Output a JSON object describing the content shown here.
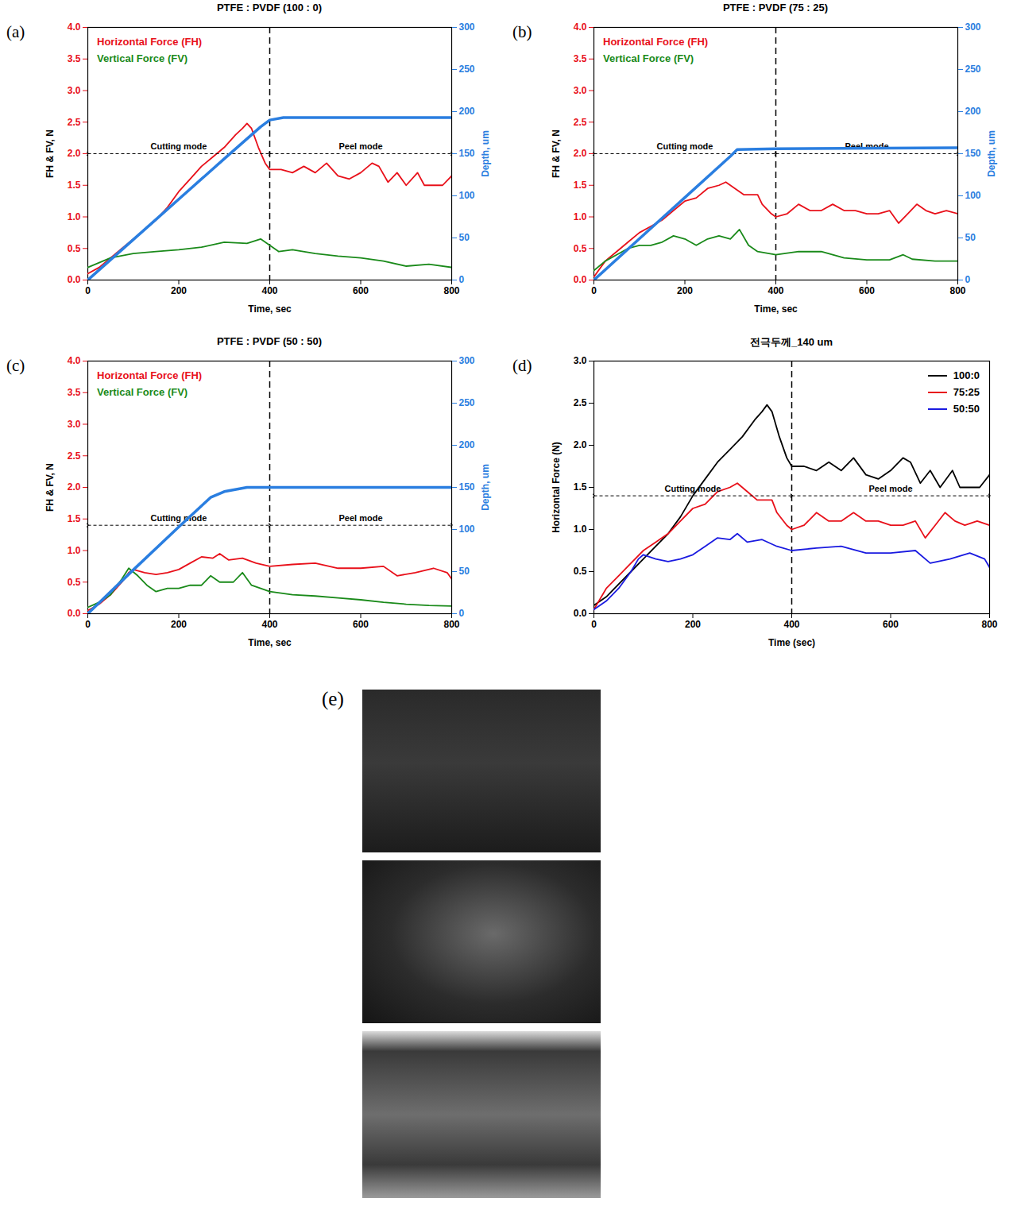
{
  "chart_data": [
    {
      "type": "line",
      "label": "(a)",
      "title": "PTFE : PVDF (100 : 0)",
      "x_label": "Time, sec",
      "y_label": "FH & FV, N",
      "y2_label": "Depth, um",
      "xlim": [
        0,
        800
      ],
      "xticks": [
        0,
        200,
        400,
        600,
        800
      ],
      "ylim": [
        0,
        4
      ],
      "yticks": [
        {
          "value": 0,
          "label": "0.0"
        },
        {
          "value": 0.5,
          "label": "0.5"
        },
        {
          "value": 1,
          "label": "1.0"
        },
        {
          "value": 1.5,
          "label": "1.5"
        },
        {
          "value": 2,
          "label": "2.0"
        },
        {
          "value": 2.5,
          "label": "2.5"
        },
        {
          "value": 3,
          "label": "3.0"
        },
        {
          "value": 3.5,
          "label": "3.5"
        },
        {
          "value": 4,
          "label": "4.0"
        }
      ],
      "y2lim": [
        0,
        300
      ],
      "y2ticks": [
        0,
        50,
        100,
        150,
        200,
        250,
        300
      ],
      "legend": "upper left",
      "annotations": [
        {
          "x": 400,
          "line_style": "dashed"
        },
        {
          "text": "Cutting mode",
          "x": [
            0,
            400
          ],
          "y": 2.0
        },
        {
          "text": "Peel mode",
          "x": [
            400,
            800
          ],
          "y": 2.0
        }
      ],
      "series": [
        {
          "name": "Horizontal Force (FH)",
          "color": "#e8101a",
          "x": [
            0,
            25,
            50,
            75,
            100,
            125,
            150,
            175,
            200,
            225,
            250,
            275,
            300,
            325,
            340,
            350,
            360,
            375,
            390,
            400,
            425,
            450,
            475,
            500,
            525,
            550,
            575,
            600,
            625,
            640,
            660,
            680,
            700,
            725,
            740,
            760,
            780,
            800
          ],
          "values": [
            0.1,
            0.2,
            0.35,
            0.5,
            0.65,
            0.8,
            0.95,
            1.15,
            1.4,
            1.6,
            1.8,
            1.95,
            2.1,
            2.3,
            2.4,
            2.48,
            2.4,
            2.1,
            1.85,
            1.75,
            1.75,
            1.7,
            1.8,
            1.7,
            1.85,
            1.65,
            1.6,
            1.7,
            1.85,
            1.8,
            1.55,
            1.7,
            1.5,
            1.7,
            1.5,
            1.5,
            1.5,
            1.65
          ]
        },
        {
          "name": "Vertical Force (FV)",
          "color": "#1a8a1a",
          "x": [
            0,
            50,
            100,
            150,
            200,
            250,
            300,
            350,
            380,
            400,
            420,
            450,
            500,
            550,
            600,
            650,
            700,
            750,
            800
          ],
          "values": [
            0.2,
            0.35,
            0.42,
            0.45,
            0.48,
            0.52,
            0.6,
            0.58,
            0.65,
            0.55,
            0.45,
            0.48,
            0.42,
            0.38,
            0.35,
            0.3,
            0.22,
            0.25,
            0.2
          ]
        },
        {
          "name": "Depth, um",
          "color": "#2a7ee0",
          "axis": "y2",
          "x": [
            0,
            100,
            200,
            300,
            380,
            400,
            430,
            800
          ],
          "values": [
            0,
            48,
            96,
            144,
            182,
            190,
            193,
            193
          ]
        }
      ]
    },
    {
      "type": "line",
      "label": "(b)",
      "title": "PTFE : PVDF (75 : 25)",
      "x_label": "Time, sec",
      "y_label": "FH & FV, N",
      "y2_label": "Depth, um",
      "xlim": [
        0,
        800
      ],
      "xticks": [
        0,
        200,
        400,
        600,
        800
      ],
      "ylim": [
        0,
        4
      ],
      "yticks": [
        {
          "value": 0,
          "label": "0.0"
        },
        {
          "value": 0.5,
          "label": "0.5"
        },
        {
          "value": 1,
          "label": "1.0"
        },
        {
          "value": 1.5,
          "label": "1.5"
        },
        {
          "value": 2,
          "label": "2.0"
        },
        {
          "value": 2.5,
          "label": "2.5"
        },
        {
          "value": 3,
          "label": "3.0"
        },
        {
          "value": 3.5,
          "label": "3.5"
        },
        {
          "value": 4,
          "label": "4.0"
        }
      ],
      "y2lim": [
        0,
        300
      ],
      "y2ticks": [
        0,
        50,
        100,
        150,
        200,
        250,
        300
      ],
      "legend": "upper left",
      "annotations": [
        {
          "x": 400,
          "line_style": "dashed"
        },
        {
          "text": "Cutting mode",
          "x": [
            0,
            400
          ],
          "y": 2.0
        },
        {
          "text": "Peel mode",
          "x": [
            400,
            800
          ],
          "y": 2.0
        }
      ],
      "series": [
        {
          "name": "Horizontal Force (FH)",
          "color": "#e8101a",
          "x": [
            0,
            25,
            50,
            75,
            100,
            125,
            150,
            175,
            200,
            225,
            250,
            275,
            290,
            310,
            330,
            360,
            370,
            390,
            400,
            425,
            450,
            475,
            500,
            525,
            550,
            575,
            600,
            625,
            650,
            670,
            690,
            710,
            730,
            750,
            775,
            800
          ],
          "values": [
            0.05,
            0.3,
            0.45,
            0.6,
            0.75,
            0.85,
            0.95,
            1.1,
            1.25,
            1.3,
            1.45,
            1.5,
            1.55,
            1.45,
            1.35,
            1.35,
            1.2,
            1.05,
            1.0,
            1.05,
            1.2,
            1.1,
            1.1,
            1.2,
            1.1,
            1.1,
            1.05,
            1.05,
            1.1,
            0.9,
            1.05,
            1.2,
            1.1,
            1.05,
            1.1,
            1.05
          ]
        },
        {
          "name": "Vertical Force (FV)",
          "color": "#1a8a1a",
          "x": [
            0,
            25,
            50,
            75,
            100,
            125,
            150,
            175,
            200,
            225,
            250,
            275,
            300,
            320,
            340,
            360,
            400,
            450,
            500,
            550,
            600,
            650,
            680,
            700,
            750,
            800
          ],
          "values": [
            0.15,
            0.3,
            0.4,
            0.5,
            0.55,
            0.55,
            0.6,
            0.7,
            0.65,
            0.55,
            0.65,
            0.7,
            0.65,
            0.8,
            0.55,
            0.45,
            0.4,
            0.45,
            0.45,
            0.35,
            0.32,
            0.32,
            0.4,
            0.33,
            0.3,
            0.3
          ]
        },
        {
          "name": "Depth, um",
          "color": "#2a7ee0",
          "axis": "y2",
          "x": [
            0,
            100,
            200,
            300,
            315,
            400,
            800
          ],
          "values": [
            0,
            49,
            98,
            147,
            155,
            156,
            157
          ]
        }
      ]
    },
    {
      "type": "line",
      "label": "(c)",
      "title": "PTFE : PVDF (50 : 50)",
      "x_label": "Time, sec",
      "y_label": "FH & FV, N",
      "y2_label": "Depth, um",
      "xlim": [
        0,
        800
      ],
      "xticks": [
        0,
        200,
        400,
        600,
        800
      ],
      "ylim": [
        0,
        4
      ],
      "yticks": [
        {
          "value": 0,
          "label": "0.0"
        },
        {
          "value": 0.5,
          "label": "0.5"
        },
        {
          "value": 1,
          "label": "1.0"
        },
        {
          "value": 1.5,
          "label": "1.5"
        },
        {
          "value": 2,
          "label": "2.0"
        },
        {
          "value": 2.5,
          "label": "2.5"
        },
        {
          "value": 3,
          "label": "3.0"
        },
        {
          "value": 3.5,
          "label": "3.5"
        },
        {
          "value": 4,
          "label": "4.0"
        }
      ],
      "y2lim": [
        0,
        300
      ],
      "y2ticks": [
        0,
        50,
        100,
        150,
        200,
        250,
        300
      ],
      "legend": "upper left",
      "annotations": [
        {
          "x": 400,
          "line_style": "dashed"
        },
        {
          "text": "Cutting mode",
          "x": [
            0,
            400
          ],
          "y": 1.4
        },
        {
          "text": "Peel mode",
          "x": [
            400,
            800
          ],
          "y": 1.4
        }
      ],
      "series": [
        {
          "name": "Horizontal Force (FH)",
          "color": "#e8101a",
          "x": [
            0,
            25,
            50,
            75,
            90,
            100,
            125,
            150,
            175,
            200,
            225,
            250,
            275,
            290,
            310,
            340,
            370,
            400,
            450,
            500,
            550,
            600,
            650,
            680,
            720,
            760,
            790,
            800
          ],
          "values": [
            0.05,
            0.15,
            0.3,
            0.5,
            0.65,
            0.7,
            0.65,
            0.62,
            0.65,
            0.7,
            0.8,
            0.9,
            0.88,
            0.95,
            0.85,
            0.88,
            0.8,
            0.75,
            0.78,
            0.8,
            0.72,
            0.72,
            0.75,
            0.6,
            0.65,
            0.72,
            0.65,
            0.55
          ]
        },
        {
          "name": "Vertical Force (FV)",
          "color": "#1a8a1a",
          "x": [
            0,
            25,
            50,
            75,
            90,
            110,
            130,
            150,
            175,
            200,
            225,
            250,
            270,
            290,
            320,
            340,
            360,
            400,
            450,
            500,
            550,
            600,
            650,
            700,
            750,
            800
          ],
          "values": [
            0.1,
            0.18,
            0.3,
            0.55,
            0.72,
            0.6,
            0.45,
            0.35,
            0.4,
            0.4,
            0.45,
            0.45,
            0.6,
            0.5,
            0.5,
            0.65,
            0.45,
            0.35,
            0.3,
            0.28,
            0.25,
            0.22,
            0.18,
            0.15,
            0.13,
            0.12
          ]
        },
        {
          "name": "Depth, um",
          "color": "#2a7ee0",
          "axis": "y2",
          "x": [
            0,
            100,
            200,
            270,
            300,
            350,
            800
          ],
          "values": [
            0,
            52,
            103,
            138,
            145,
            150,
            150
          ]
        }
      ]
    },
    {
      "type": "line",
      "label": "(d)",
      "title": "전극두께_140 um",
      "x_label": "Time (sec)",
      "y_label": "Horizontal Force (N)",
      "xlim": [
        0,
        800
      ],
      "xticks": [
        0,
        200,
        400,
        600,
        800
      ],
      "ylim": [
        0,
        3
      ],
      "yticks": [
        {
          "value": 0,
          "label": "0.0"
        },
        {
          "value": 0.5,
          "label": "0.5"
        },
        {
          "value": 1,
          "label": "1.0"
        },
        {
          "value": 1.5,
          "label": "1.5"
        },
        {
          "value": 2,
          "label": "2.0"
        },
        {
          "value": 2.5,
          "label": "2.5"
        },
        {
          "value": 3,
          "label": "3.0"
        }
      ],
      "legend": "upper right",
      "annotations": [
        {
          "x": 400,
          "line_style": "dashed"
        },
        {
          "text": "Cutting mode",
          "x": [
            0,
            400
          ],
          "y": 1.4
        },
        {
          "text": "Peel mode",
          "x": [
            400,
            800
          ],
          "y": 1.4
        }
      ],
      "series": [
        {
          "name": "100:0",
          "color": "#000000",
          "x": [
            0,
            25,
            50,
            75,
            100,
            125,
            150,
            175,
            200,
            225,
            250,
            275,
            300,
            325,
            340,
            350,
            360,
            375,
            390,
            400,
            425,
            450,
            475,
            500,
            525,
            550,
            575,
            600,
            625,
            640,
            660,
            680,
            700,
            725,
            740,
            760,
            780,
            800
          ],
          "values": [
            0.1,
            0.2,
            0.35,
            0.5,
            0.65,
            0.8,
            0.95,
            1.15,
            1.4,
            1.6,
            1.8,
            1.95,
            2.1,
            2.3,
            2.4,
            2.48,
            2.4,
            2.1,
            1.85,
            1.75,
            1.75,
            1.7,
            1.8,
            1.7,
            1.85,
            1.65,
            1.6,
            1.7,
            1.85,
            1.8,
            1.55,
            1.7,
            1.5,
            1.7,
            1.5,
            1.5,
            1.5,
            1.65
          ]
        },
        {
          "name": "75:25",
          "color": "#e8101a",
          "x": [
            0,
            25,
            50,
            75,
            100,
            125,
            150,
            175,
            200,
            225,
            250,
            275,
            290,
            310,
            330,
            360,
            370,
            390,
            400,
            425,
            450,
            475,
            500,
            525,
            550,
            575,
            600,
            625,
            650,
            670,
            690,
            710,
            730,
            750,
            775,
            800
          ],
          "values": [
            0.05,
            0.3,
            0.45,
            0.6,
            0.75,
            0.85,
            0.95,
            1.1,
            1.25,
            1.3,
            1.45,
            1.5,
            1.55,
            1.45,
            1.35,
            1.35,
            1.2,
            1.05,
            1.0,
            1.05,
            1.2,
            1.1,
            1.1,
            1.2,
            1.1,
            1.1,
            1.05,
            1.05,
            1.1,
            0.9,
            1.05,
            1.2,
            1.1,
            1.05,
            1.1,
            1.05
          ]
        },
        {
          "name": "50:50",
          "color": "#1a1ae0",
          "x": [
            0,
            25,
            50,
            75,
            90,
            100,
            125,
            150,
            175,
            200,
            225,
            250,
            275,
            290,
            310,
            340,
            370,
            400,
            450,
            500,
            550,
            600,
            650,
            680,
            720,
            760,
            790,
            800
          ],
          "values": [
            0.05,
            0.15,
            0.3,
            0.5,
            0.65,
            0.7,
            0.65,
            0.62,
            0.65,
            0.7,
            0.8,
            0.9,
            0.88,
            0.95,
            0.85,
            0.88,
            0.8,
            0.75,
            0.78,
            0.8,
            0.72,
            0.72,
            0.75,
            0.6,
            0.65,
            0.72,
            0.65,
            0.55
          ]
        }
      ]
    }
  ],
  "image_panel": {
    "label": "(e)"
  }
}
